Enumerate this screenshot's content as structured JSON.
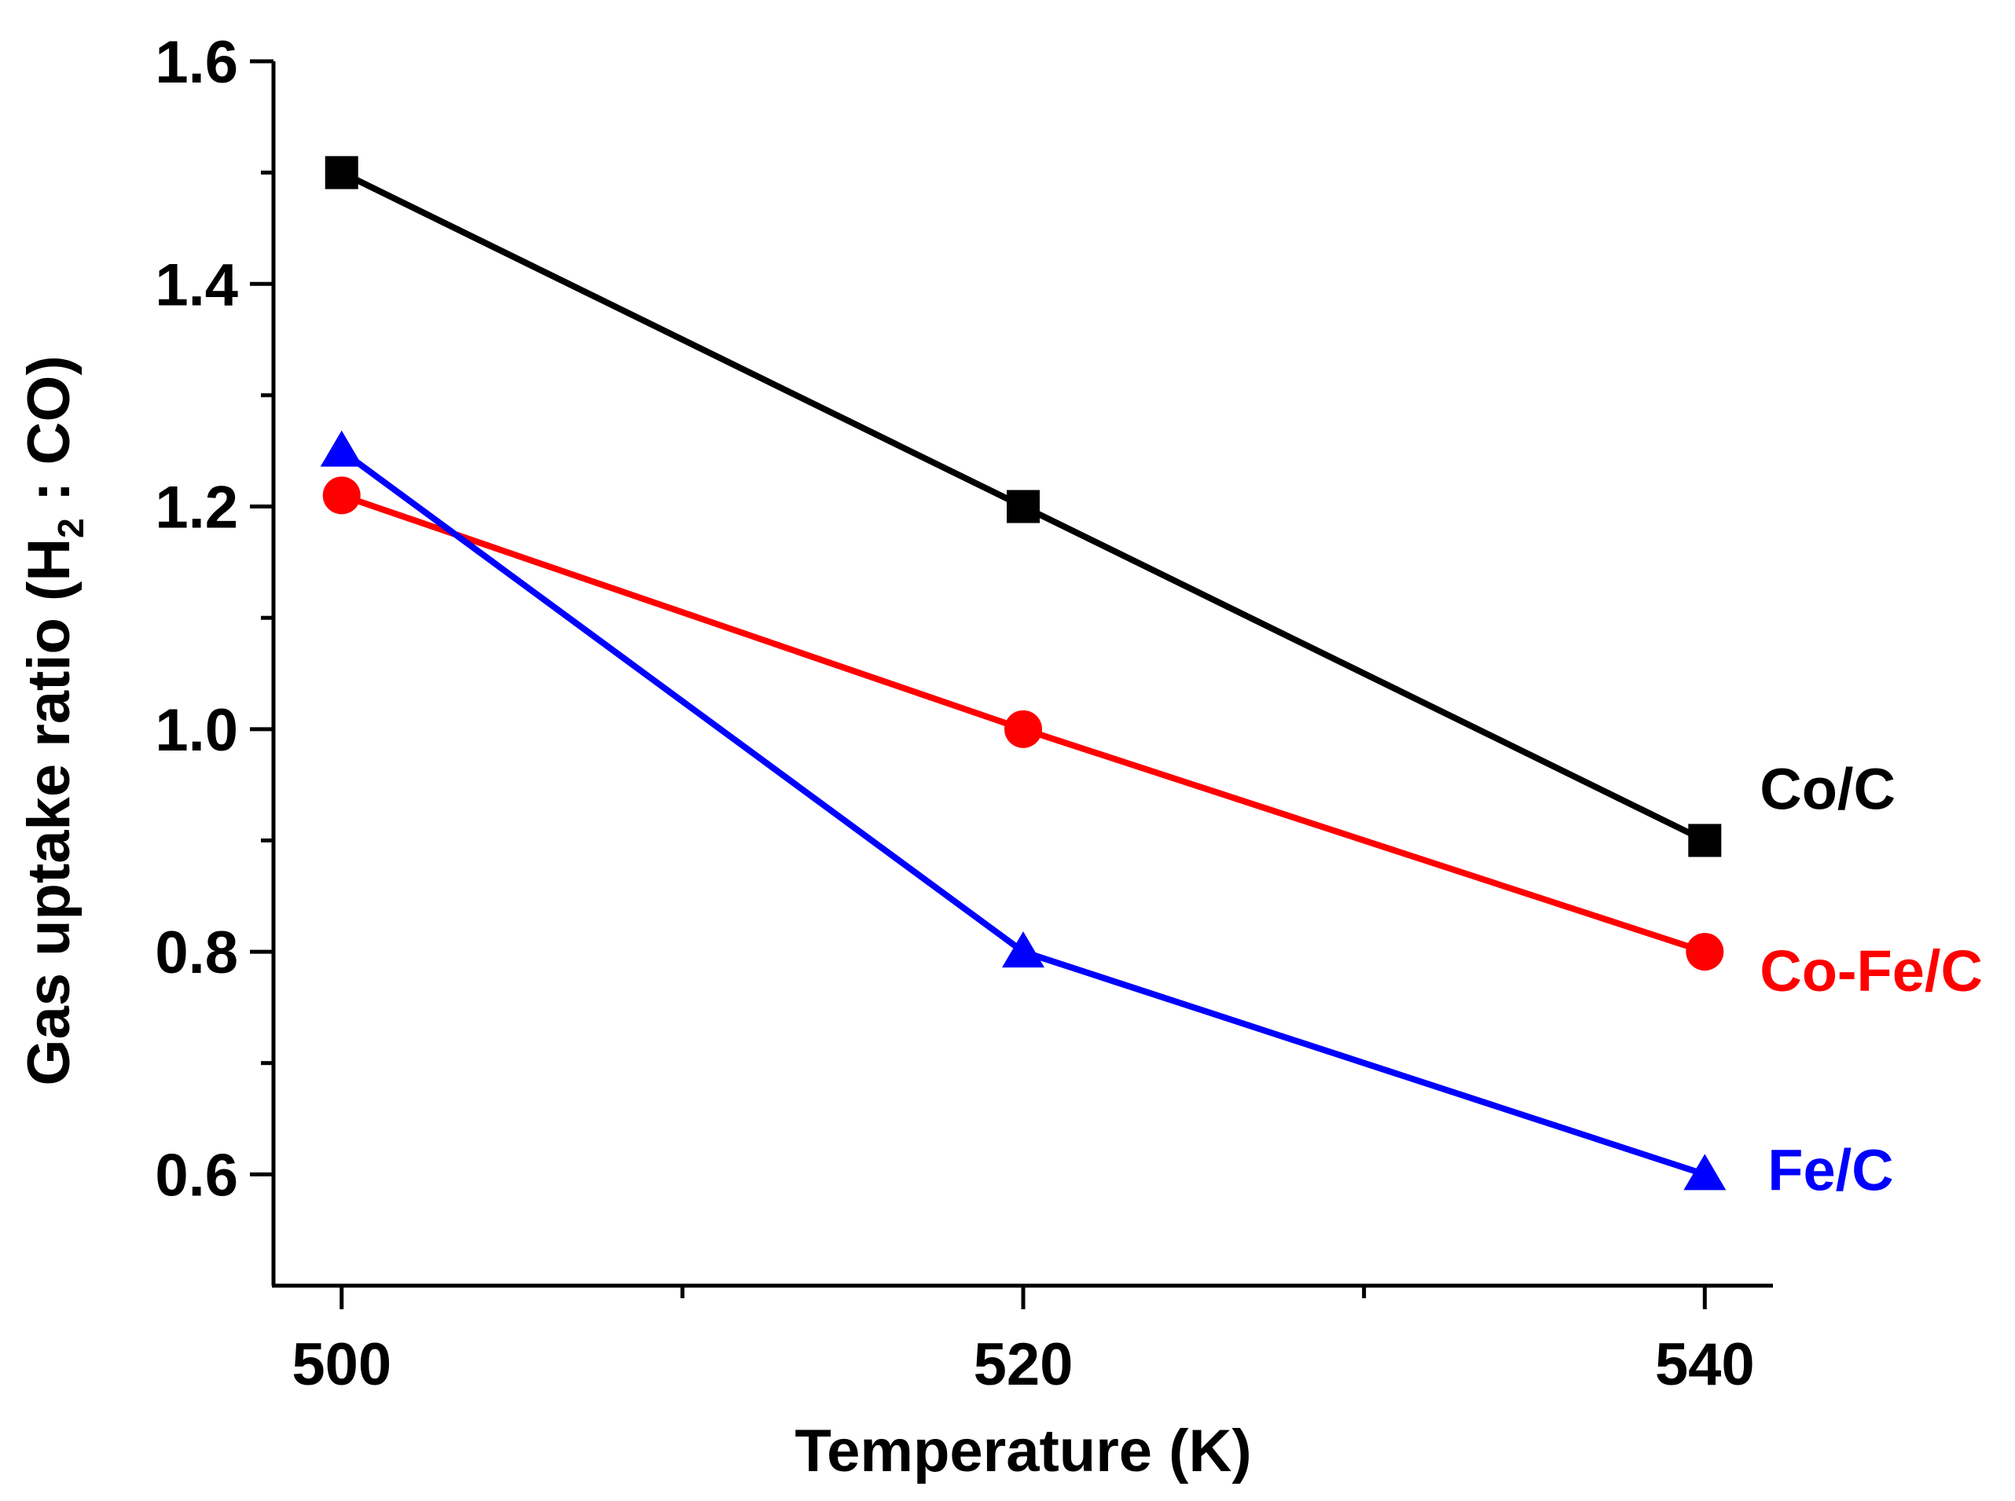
{
  "chart_data": {
    "type": "line",
    "title": "",
    "xlabel": "Temperature (K)",
    "ylabel": {
      "prefix": "Gas uptake ratio (H",
      "subscript": "2",
      "suffix": " : CO)"
    },
    "x": [
      500,
      520,
      540
    ],
    "xlim": [
      498,
      542
    ],
    "ylim": [
      0.5,
      1.6
    ],
    "x_ticks": [
      "500",
      "520",
      "540"
    ],
    "y_ticks": [
      "0.6",
      "0.8",
      "1.0",
      "1.2",
      "1.4",
      "1.6"
    ],
    "y_tick_values": [
      0.6,
      0.8,
      1.0,
      1.2,
      1.4,
      1.6
    ],
    "x_tick_values": [
      500,
      520,
      540
    ],
    "x_minor_ticks": [
      510,
      530
    ],
    "y_minor_ticks": [
      0.7,
      0.9,
      1.1,
      1.3,
      1.5
    ],
    "grid": false,
    "legend": "inline-right",
    "series": [
      {
        "name": "Co/C",
        "color": "#000000",
        "marker": "square",
        "values": [
          1.5,
          1.2,
          0.9
        ]
      },
      {
        "name": "Co-Fe/C",
        "color": "#ff0000",
        "marker": "circle",
        "values": [
          1.21,
          1.0,
          0.8
        ]
      },
      {
        "name": "Fe/C",
        "color": "#0000ff",
        "marker": "triangle",
        "values": [
          1.25,
          0.8,
          0.6
        ]
      }
    ]
  }
}
